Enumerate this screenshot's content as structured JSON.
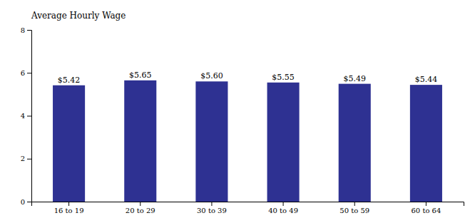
{
  "chart_data": {
    "type": "bar",
    "ylabel": "Average Hourly Wage",
    "categories": [
      "16 to 19",
      "20 to 29",
      "30 to 39",
      "40 to 49",
      "50 to 59",
      "60 to 64"
    ],
    "values": [
      5.42,
      5.65,
      5.6,
      5.55,
      5.49,
      5.44
    ],
    "value_labels": [
      "$5.42",
      "$5.65",
      "$5.60",
      "$5.55",
      "$5.49",
      "$5.44"
    ],
    "data_labels": true,
    "color": "#2E3192",
    "ylim": [
      0,
      8
    ],
    "yticks": [
      0,
      2,
      4,
      6,
      8
    ],
    "grid": false
  }
}
